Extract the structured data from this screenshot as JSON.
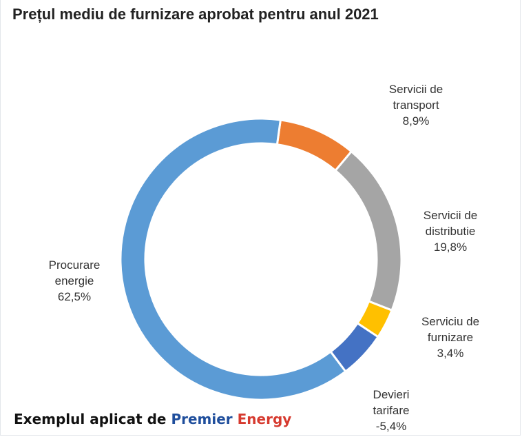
{
  "title": "Prețul mediu de furnizare aprobat pentru anul 2021",
  "footer": {
    "prefix": "Exemplul aplicat de ",
    "brand_part1": "Premier",
    "brand_part2": "Energy"
  },
  "chart_data": {
    "type": "pie",
    "variant": "donut",
    "title": "Prețul mediu de furnizare aprobat pentru anul 2021",
    "slices": [
      {
        "name": "Servicii de transport",
        "label_lines": [
          "Servicii de",
          "transport",
          "8,9%"
        ],
        "value": 8.9,
        "color": "#ed7d31"
      },
      {
        "name": "Servicii de distributie",
        "label_lines": [
          "Servicii de",
          "distributie",
          "19,8%"
        ],
        "value": 19.8,
        "color": "#a5a5a5"
      },
      {
        "name": "Serviciu de furnizare",
        "label_lines": [
          "Serviciu de",
          "furnizare",
          "3,4%"
        ],
        "value": 3.4,
        "color": "#ffc000"
      },
      {
        "name": "Devieri tarifare",
        "label_lines": [
          "Devieri",
          "tarifare",
          "-5,4%"
        ],
        "value": -5.4,
        "color": "#4472c4"
      },
      {
        "name": "Procurare energie",
        "label_lines": [
          "Procurare",
          "energie",
          "62,5%"
        ],
        "value": 62.5,
        "color": "#5b9bd5"
      }
    ],
    "legend": "none"
  }
}
